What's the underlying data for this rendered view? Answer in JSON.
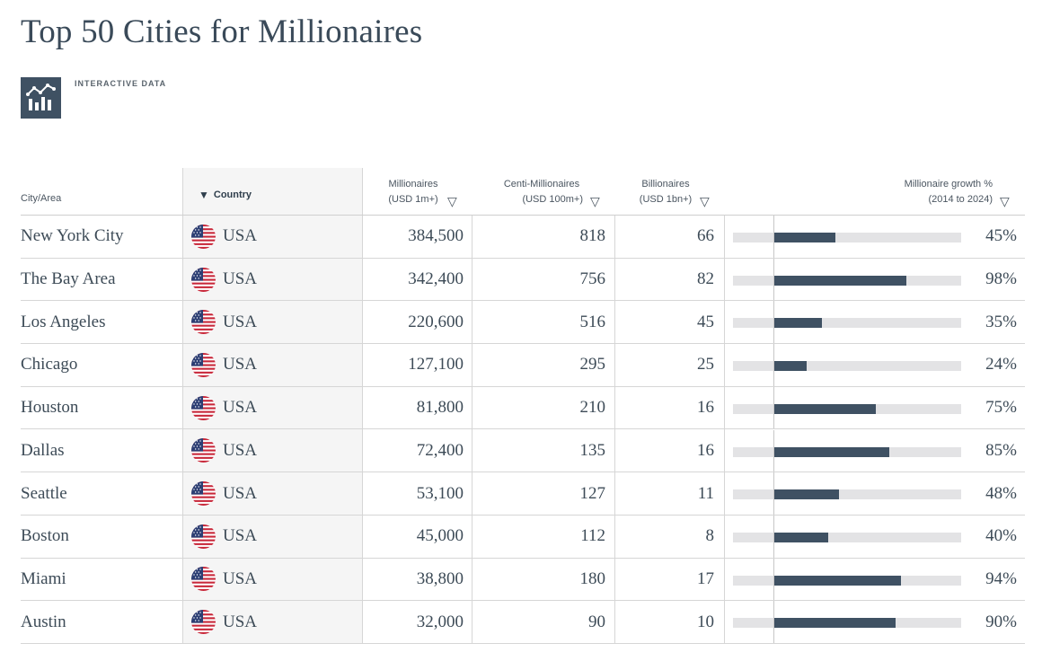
{
  "page": {
    "title": "Top 50 Cities for Millionaires",
    "badge_label": "INTERACTIVE DATA",
    "badge_icon": "chart-bars-icon"
  },
  "columns": {
    "city": "City/Area",
    "country": "Country",
    "millionaires_line1": "Millionaires",
    "millionaires_line2": "(USD 1m+)",
    "centi_line1": "Centi-Millionaires",
    "centi_line2": "(USD 100m+)",
    "billionaires_line1": "Billionaires",
    "billionaires_line2": "(USD 1bn+)",
    "growth_line1": "Millionaire growth %",
    "growth_line2": "(2014 to 2024)",
    "sort_icon": "triangle-down-icon",
    "filter_icon": "triangle-outline-down-icon"
  },
  "colors": {
    "title": "#3a4a59",
    "bar_fill": "#3f5163",
    "bar_track": "#e3e3e5",
    "country_column_bg": "#f5f5f5"
  },
  "rows": [
    {
      "city": "New York City",
      "country": "USA",
      "flag_icon": "us-flag-icon",
      "millionaires": "384,500",
      "centi": "818",
      "billionaires": "66",
      "growth": "45%",
      "growth_value": 45
    },
    {
      "city": "The Bay Area",
      "country": "USA",
      "flag_icon": "us-flag-icon",
      "millionaires": "342,400",
      "centi": "756",
      "billionaires": "82",
      "growth": "98%",
      "growth_value": 98
    },
    {
      "city": "Los Angeles",
      "country": "USA",
      "flag_icon": "us-flag-icon",
      "millionaires": "220,600",
      "centi": "516",
      "billionaires": "45",
      "growth": "35%",
      "growth_value": 35
    },
    {
      "city": "Chicago",
      "country": "USA",
      "flag_icon": "us-flag-icon",
      "millionaires": "127,100",
      "centi": "295",
      "billionaires": "25",
      "growth": "24%",
      "growth_value": 24
    },
    {
      "city": "Houston",
      "country": "USA",
      "flag_icon": "us-flag-icon",
      "millionaires": "81,800",
      "centi": "210",
      "billionaires": "16",
      "growth": "75%",
      "growth_value": 75
    },
    {
      "city": "Dallas",
      "country": "USA",
      "flag_icon": "us-flag-icon",
      "millionaires": "72,400",
      "centi": "135",
      "billionaires": "16",
      "growth": "85%",
      "growth_value": 85
    },
    {
      "city": "Seattle",
      "country": "USA",
      "flag_icon": "us-flag-icon",
      "millionaires": "53,100",
      "centi": "127",
      "billionaires": "11",
      "growth": "48%",
      "growth_value": 48
    },
    {
      "city": "Boston",
      "country": "USA",
      "flag_icon": "us-flag-icon",
      "millionaires": "45,000",
      "centi": "112",
      "billionaires": "8",
      "growth": "40%",
      "growth_value": 40
    },
    {
      "city": "Miami",
      "country": "USA",
      "flag_icon": "us-flag-icon",
      "millionaires": "38,800",
      "centi": "180",
      "billionaires": "17",
      "growth": "94%",
      "growth_value": 94
    },
    {
      "city": "Austin",
      "country": "USA",
      "flag_icon": "us-flag-icon",
      "millionaires": "32,000",
      "centi": "90",
      "billionaires": "10",
      "growth": "90%",
      "growth_value": 90
    }
  ]
}
